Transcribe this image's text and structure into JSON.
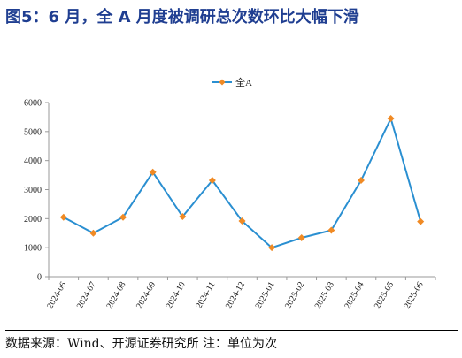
{
  "figure": {
    "title": "图5：6 月，全 A 月度被调研总次数环比大幅下滑",
    "source_note": "数据来源：Wind、开源证券研究所 注：单位为次"
  },
  "colors": {
    "title": "#1f3e91",
    "line": "#2a8fd1",
    "marker": "#f08a24",
    "axis": "#999999"
  },
  "chart_data": {
    "type": "line",
    "categories": [
      "2024-06",
      "2024-07",
      "2024-08",
      "2024-09",
      "2024-10",
      "2024-11",
      "2024-12",
      "2025-01",
      "2025-02",
      "2025-03",
      "2025-04",
      "2025-05",
      "2025-06"
    ],
    "series": [
      {
        "name": "全A",
        "values": [
          2050,
          1500,
          2050,
          3600,
          2070,
          3320,
          1920,
          1000,
          1340,
          1600,
          3320,
          5450,
          1900
        ]
      }
    ],
    "ylim": [
      0,
      6000
    ],
    "yticks": [
      0,
      1000,
      2000,
      3000,
      4000,
      5000,
      6000
    ],
    "legend_position": "top-center",
    "grid": false,
    "marker": "diamond",
    "xlabel": "",
    "ylabel": ""
  }
}
